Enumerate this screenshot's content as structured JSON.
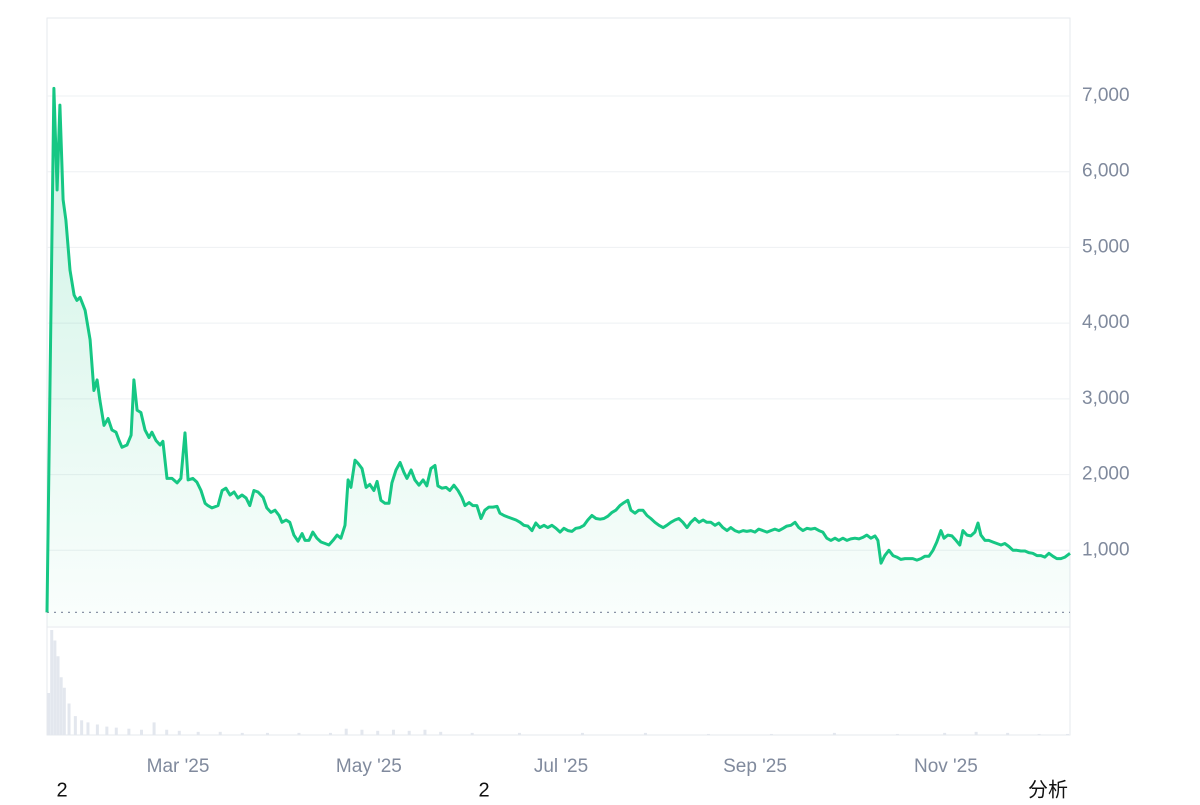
{
  "chart_data": {
    "type": "line",
    "color": "#16c784",
    "grid": true,
    "x": [
      0,
      2.2,
      3.2,
      4.1,
      5.1,
      6.0,
      7.3,
      8.6,
      9.5,
      10.5,
      12.1,
      13.7,
      14.9,
      15.9,
      16.8,
      18.1,
      19.4,
      20.6,
      21.9,
      22.9,
      23.8,
      25.4,
      26.7,
      27.6,
      28.6,
      29.8,
      31.1,
      32.4,
      33.3,
      34.6,
      35.9,
      36.8,
      38.1,
      39.7,
      41.3,
      42.5,
      43.8,
      44.8,
      46.3,
      47.6,
      48.9,
      50.2,
      51.1,
      52.4,
      54.3,
      55.6,
      56.8,
      58.1,
      59.4,
      60.6,
      61.9,
      63.2,
      64.4,
      65.7,
      67.0,
      68.6,
      69.8,
      71.1,
      72.4,
      73.7,
      74.6,
      75.9,
      77.1,
      78.4,
      79.7,
      81.0,
      81.9,
      83.2,
      84.4,
      85.7,
      87.0,
      88.3,
      89.5,
      90.8,
      92.1,
      93.3,
      94.6,
      95.6,
      96.5,
      97.8,
      98.7,
      100.0,
      101.3,
      102.5,
      103.8,
      104.8,
      106.0,
      107.3,
      108.6,
      109.5,
      110.8,
      112.1,
      113.3,
      114.3,
      115.6,
      116.8,
      118.1,
      119.4,
      120.6,
      121.9,
      123.2,
      124.1,
      125.4,
      126.7,
      127.9,
      129.2,
      130.5,
      131.7,
      132.7,
      134.0,
      135.2,
      136.5,
      137.8,
      139.0,
      140.3,
      141.6,
      142.9,
      143.8,
      145.1,
      146.3,
      147.6,
      148.9,
      150.2,
      151.4,
      152.7,
      154.0,
      155.2,
      156.5,
      157.8,
      159.0,
      160.3,
      161.6,
      162.9,
      164.1,
      165.4,
      166.7,
      167.9,
      169.2,
      170.5,
      171.7,
      173.0,
      174.3,
      175.6,
      176.8,
      178.1,
      179.4,
      180.6,
      181.9,
      183.2,
      184.4,
      185.4,
      186.7,
      187.9,
      189.2,
      190.5,
      191.7,
      193.0,
      194.3,
      195.6,
      196.8,
      198.1,
      199.4,
      200.6,
      201.9,
      203.2,
      204.4,
      205.7,
      207.0,
      208.3,
      209.5,
      210.8,
      212.1,
      213.3,
      214.6,
      215.9,
      217.1,
      218.4,
      219.7,
      221.0,
      222.2,
      223.5,
      224.8,
      226.0,
      227.3,
      228.6,
      229.8,
      231.1,
      232.4,
      233.7,
      234.9,
      236.2,
      237.5,
      238.7,
      240.0,
      241.3,
      242.5,
      243.8,
      245.1,
      246.3,
      247.6,
      248.9,
      250.2,
      251.4,
      252.7,
      254.0,
      255.2,
      256.5,
      257.8,
      259.0,
      260.3,
      261.6,
      262.9,
      263.8,
      264.8,
      266.0,
      267.3,
      268.6,
      269.8,
      271.1,
      272.4,
      273.7,
      274.9,
      276.2,
      277.5,
      278.7,
      280.0,
      281.3,
      282.5,
      283.8,
      284.8,
      286.0,
      287.3,
      288.6,
      289.8,
      290.8,
      292.1,
      293.3,
      294.6,
      295.6,
      296.5,
      297.8,
      299.0,
      300.3,
      301.6,
      302.9,
      304.1,
      305.4,
      306.7,
      307.9,
      309.2,
      310.5,
      311.7,
      313.0,
      314.3,
      315.6,
      316.8,
      318.1,
      319.4,
      320.6,
      321.9,
      323.2,
      324.8
    ],
    "values": [
      180,
      7100,
      5760,
      6880,
      5630,
      5360,
      4700,
      4370,
      4300,
      4340,
      4170,
      3780,
      3110,
      3250,
      2980,
      2650,
      2740,
      2590,
      2560,
      2450,
      2360,
      2390,
      2520,
      3250,
      2850,
      2820,
      2590,
      2490,
      2560,
      2450,
      2390,
      2440,
      1950,
      1950,
      1890,
      1950,
      2550,
      1930,
      1950,
      1900,
      1790,
      1620,
      1590,
      1560,
      1590,
      1790,
      1820,
      1730,
      1770,
      1690,
      1730,
      1690,
      1590,
      1790,
      1770,
      1700,
      1560,
      1500,
      1530,
      1460,
      1370,
      1400,
      1370,
      1200,
      1120,
      1220,
      1130,
      1130,
      1240,
      1160,
      1110,
      1090,
      1070,
      1130,
      1200,
      1160,
      1330,
      1930,
      1830,
      2190,
      2150,
      2080,
      1830,
      1870,
      1790,
      1910,
      1660,
      1620,
      1620,
      1890,
      2060,
      2160,
      2030,
      1950,
      2060,
      1930,
      1860,
      1930,
      1850,
      2080,
      2120,
      1850,
      1820,
      1830,
      1790,
      1860,
      1790,
      1700,
      1590,
      1630,
      1590,
      1590,
      1420,
      1530,
      1570,
      1570,
      1580,
      1490,
      1460,
      1440,
      1420,
      1400,
      1370,
      1330,
      1320,
      1260,
      1360,
      1300,
      1330,
      1300,
      1330,
      1290,
      1240,
      1290,
      1260,
      1250,
      1290,
      1300,
      1330,
      1400,
      1460,
      1420,
      1410,
      1420,
      1450,
      1500,
      1530,
      1590,
      1630,
      1660,
      1530,
      1490,
      1530,
      1530,
      1460,
      1420,
      1370,
      1330,
      1300,
      1330,
      1370,
      1400,
      1420,
      1370,
      1300,
      1370,
      1420,
      1370,
      1400,
      1370,
      1370,
      1330,
      1360,
      1300,
      1260,
      1300,
      1260,
      1240,
      1260,
      1250,
      1260,
      1240,
      1280,
      1260,
      1240,
      1260,
      1280,
      1260,
      1290,
      1320,
      1330,
      1370,
      1300,
      1260,
      1290,
      1280,
      1290,
      1260,
      1240,
      1160,
      1130,
      1160,
      1130,
      1160,
      1130,
      1150,
      1160,
      1150,
      1170,
      1200,
      1160,
      1190,
      1130,
      830,
      930,
      1000,
      930,
      910,
      880,
      890,
      890,
      890,
      870,
      890,
      920,
      920,
      1000,
      1110,
      1260,
      1160,
      1200,
      1190,
      1130,
      1070,
      1260,
      1200,
      1190,
      1240,
      1360,
      1200,
      1130,
      1130,
      1110,
      1090,
      1070,
      1090,
      1050,
      1000,
      1000,
      990,
      990,
      970,
      960,
      930,
      930,
      910,
      960,
      920,
      890,
      890,
      910,
      960
    ],
    "xlim": [
      0,
      324.8
    ],
    "xticks": [
      {
        "value": 41.6,
        "label": "Mar '25"
      },
      {
        "value": 102.2,
        "label": "May '25"
      },
      {
        "value": 163.2,
        "label": "Jul '25"
      },
      {
        "value": 224.8,
        "label": "Sep '25"
      },
      {
        "value": 285.4,
        "label": "Nov '25"
      }
    ],
    "ylim": [
      0,
      8030
    ],
    "yticks": [
      {
        "value": 1000,
        "label": "1,000"
      },
      {
        "value": 2000,
        "label": "2,000"
      },
      {
        "value": 3000,
        "label": "3,000"
      },
      {
        "value": 4000,
        "label": "4,000"
      },
      {
        "value": 5000,
        "label": "5,000"
      },
      {
        "value": 6000,
        "label": "6,000"
      },
      {
        "value": 7000,
        "label": "7,000"
      }
    ],
    "volume": {
      "color": "#e3e7ee",
      "ylim": [
        0,
        100
      ],
      "x": [
        0.5,
        1.5,
        2.5,
        3.5,
        4.5,
        5.5,
        7,
        9,
        11,
        13,
        16,
        19,
        22,
        26,
        30,
        34,
        38,
        42,
        48,
        55,
        62,
        70,
        80,
        90,
        95,
        100,
        105,
        110,
        115,
        120,
        125,
        135,
        150,
        170,
        190,
        210,
        230,
        250,
        270,
        285,
        295,
        305,
        315,
        324
      ],
      "values": [
        40,
        100,
        90,
        75,
        55,
        45,
        30,
        18,
        14,
        12,
        10,
        8,
        7,
        6,
        5,
        12,
        5,
        4,
        3,
        3,
        2,
        2,
        2,
        2,
        6,
        5,
        4,
        5,
        4,
        5,
        3,
        2,
        2,
        2,
        2,
        1,
        1,
        2,
        1,
        2,
        3,
        2,
        1,
        1
      ]
    }
  },
  "footer_labels": [
    "2",
    "2",
    "分析"
  ]
}
